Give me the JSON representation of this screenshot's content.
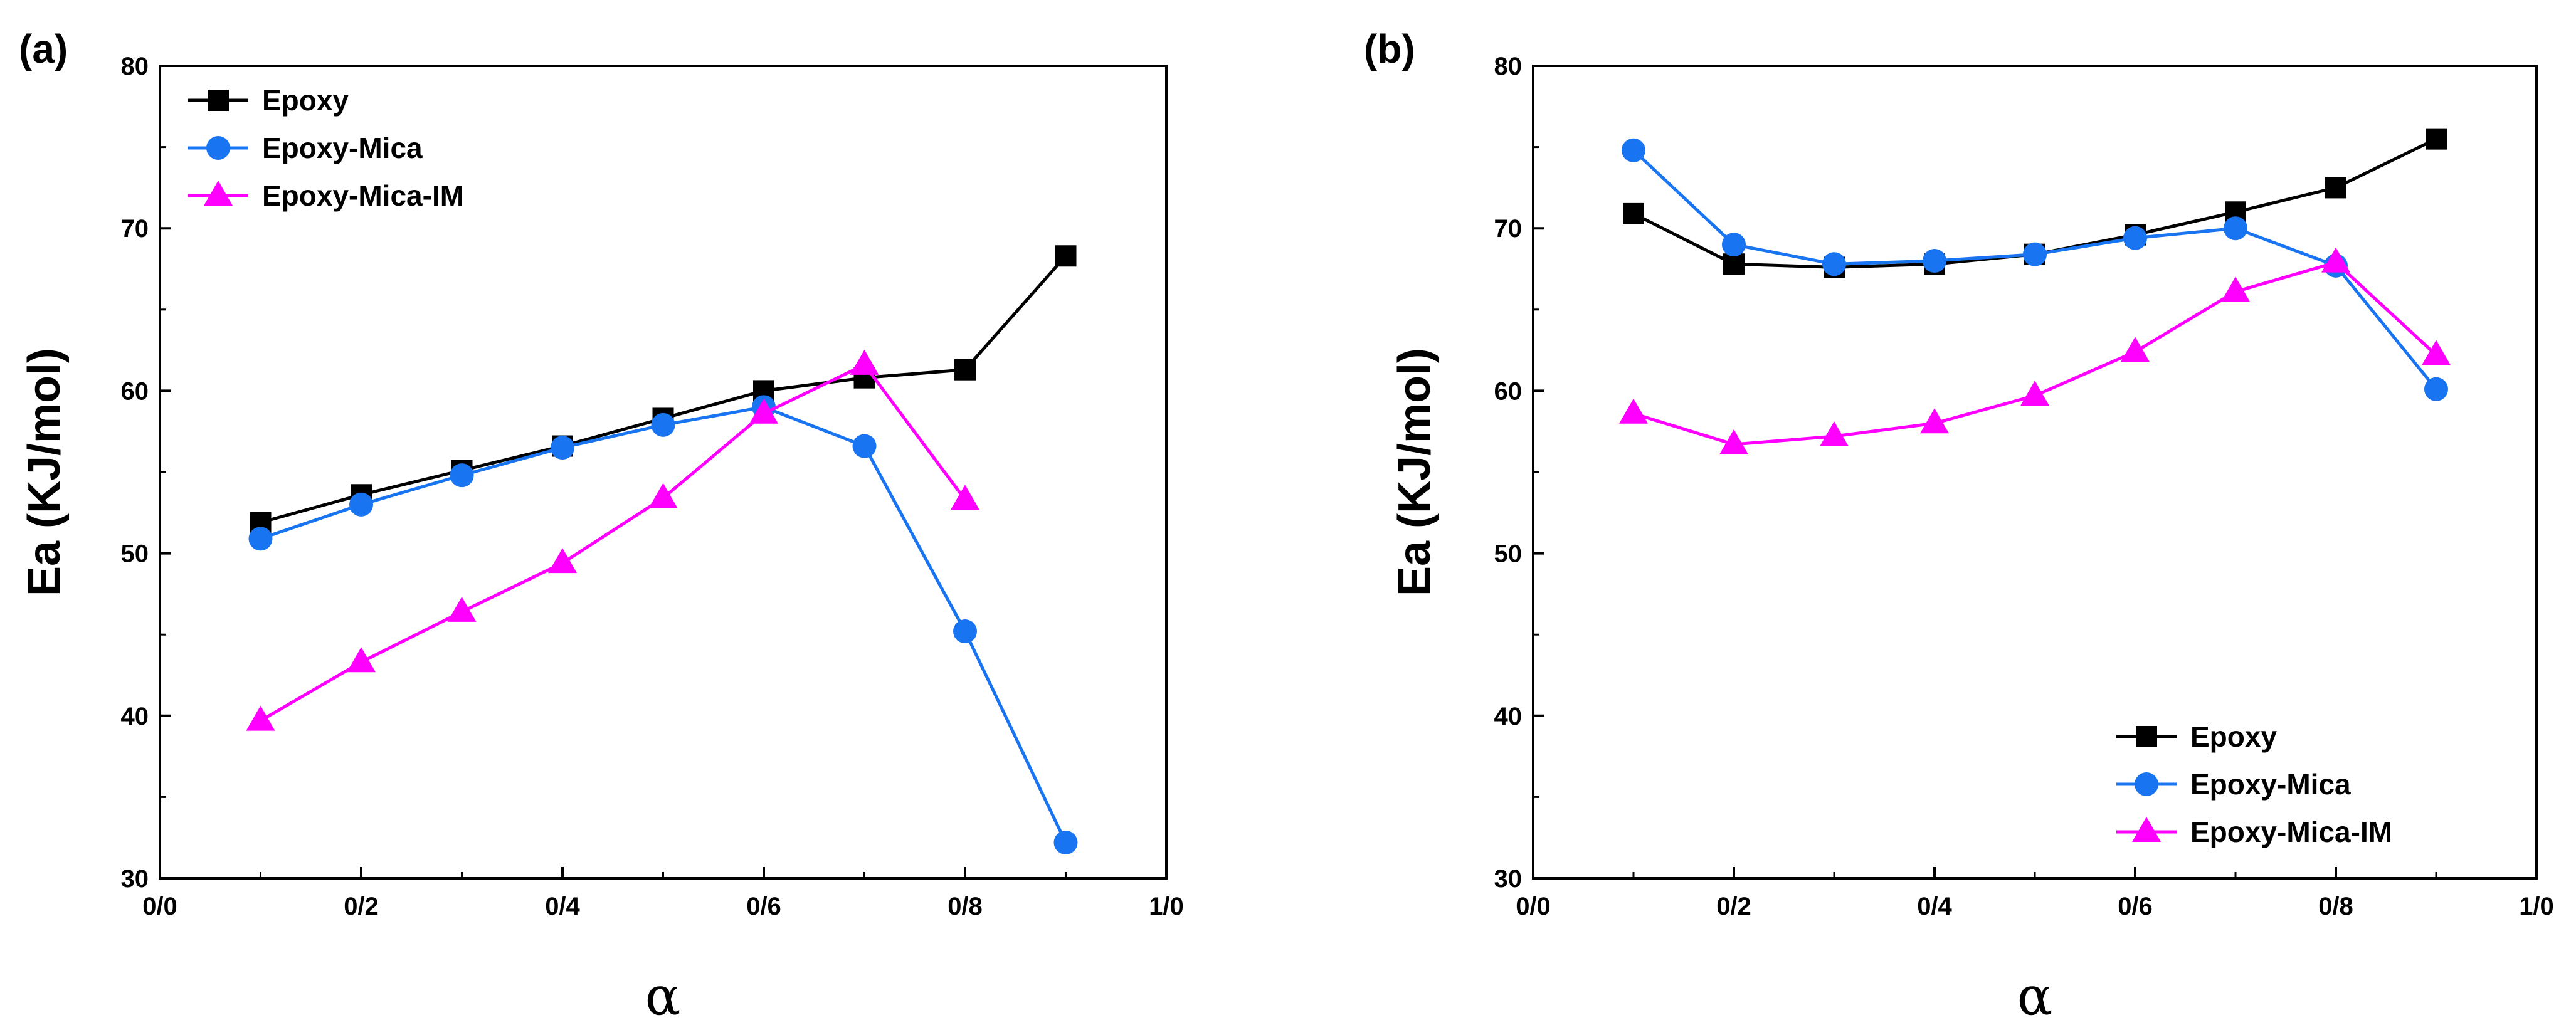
{
  "colors": {
    "epoxy": "#000000",
    "epoxy_mica": "#1874f0",
    "epoxy_mica_im": "#ff00ff"
  },
  "chart_data": [
    {
      "type": "line",
      "panel_label": "(a)",
      "xlabel": "α",
      "ylabel": "Ea (KJ/mol)",
      "xlim": [
        0.0,
        1.0
      ],
      "ylim": [
        30,
        80
      ],
      "x_ticks": [
        0.0,
        0.2,
        0.4,
        0.6,
        0.8,
        1.0
      ],
      "x_tick_labels": [
        "0/0",
        "0/2",
        "0/4",
        "0/6",
        "0/8",
        "1/0"
      ],
      "y_ticks": [
        30,
        40,
        50,
        60,
        70,
        80
      ],
      "y_tick_labels": [
        "30",
        "40",
        "50",
        "60",
        "70",
        "80"
      ],
      "legend_position": "top-left",
      "grid": false,
      "series": [
        {
          "name": "Epoxy",
          "marker": "square",
          "color": "#000000",
          "x": [
            0.1,
            0.2,
            0.3,
            0.4,
            0.5,
            0.6,
            0.7,
            0.8,
            0.9
          ],
          "y": [
            51.9,
            53.6,
            55.1,
            56.6,
            58.3,
            60.0,
            60.8,
            61.3,
            68.3
          ]
        },
        {
          "name": "Epoxy-Mica",
          "marker": "circle",
          "color": "#1874f0",
          "x": [
            0.1,
            0.2,
            0.3,
            0.4,
            0.5,
            0.6,
            0.7,
            0.8,
            0.9
          ],
          "y": [
            50.9,
            53.0,
            54.8,
            56.5,
            57.9,
            59.0,
            56.6,
            45.2,
            32.2
          ]
        },
        {
          "name": "Epoxy-Mica-IM",
          "marker": "triangle",
          "color": "#ff00ff",
          "x": [
            0.1,
            0.2,
            0.3,
            0.4,
            0.5,
            0.6,
            0.7,
            0.8
          ],
          "y": [
            39.7,
            43.3,
            46.4,
            49.4,
            53.4,
            58.6,
            61.6,
            53.3
          ]
        }
      ]
    },
    {
      "type": "line",
      "panel_label": "(b)",
      "xlabel": "α",
      "ylabel": "Ea (KJ/mol)",
      "xlim": [
        0.0,
        1.0
      ],
      "ylim": [
        30,
        80
      ],
      "x_ticks": [
        0.0,
        0.2,
        0.4,
        0.6,
        0.8,
        1.0
      ],
      "x_tick_labels": [
        "0/0",
        "0/2",
        "0/4",
        "0/6",
        "0/8",
        "1/0"
      ],
      "y_ticks": [
        30,
        40,
        50,
        60,
        70,
        80
      ],
      "y_tick_labels": [
        "30",
        "40",
        "50",
        "60",
        "70",
        "80"
      ],
      "legend_position": "bottom-right",
      "grid": false,
      "series": [
        {
          "name": "Epoxy",
          "marker": "square",
          "color": "#000000",
          "x": [
            0.1,
            0.2,
            0.3,
            0.4,
            0.5,
            0.6,
            0.7,
            0.8,
            0.9
          ],
          "y": [
            70.9,
            67.8,
            67.6,
            67.8,
            68.4,
            69.6,
            71.0,
            72.5,
            75.5
          ]
        },
        {
          "name": "Epoxy-Mica",
          "marker": "circle",
          "color": "#1874f0",
          "x": [
            0.1,
            0.2,
            0.3,
            0.4,
            0.5,
            0.6,
            0.7,
            0.8,
            0.9
          ],
          "y": [
            74.8,
            69.0,
            67.8,
            68.0,
            68.4,
            69.4,
            70.0,
            67.7,
            60.1
          ]
        },
        {
          "name": "Epoxy-Mica-IM",
          "marker": "triangle",
          "color": "#ff00ff",
          "x": [
            0.1,
            0.2,
            0.3,
            0.4,
            0.5,
            0.6,
            0.7,
            0.8,
            0.9
          ],
          "y": [
            58.6,
            56.7,
            57.2,
            58.0,
            59.7,
            62.4,
            66.1,
            67.9,
            62.2
          ]
        }
      ]
    }
  ]
}
